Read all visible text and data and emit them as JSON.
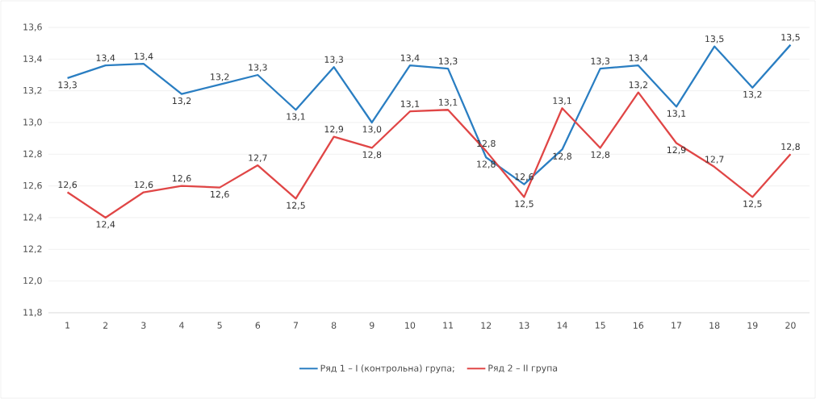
{
  "chart_data": {
    "type": "line",
    "categories": [
      "1",
      "2",
      "3",
      "4",
      "5",
      "6",
      "7",
      "8",
      "9",
      "10",
      "11",
      "12",
      "13",
      "14",
      "15",
      "16",
      "17",
      "18",
      "19",
      "20"
    ],
    "series": [
      {
        "name": "Ряд 1 – I (контрольна) група;",
        "color": "#2a7ec2",
        "values": [
          13.28,
          13.36,
          13.37,
          13.18,
          13.24,
          13.3,
          13.08,
          13.35,
          13.0,
          13.36,
          13.34,
          12.78,
          12.61,
          12.83,
          13.34,
          13.36,
          13.1,
          13.48,
          13.22,
          13.49
        ],
        "value_labels": [
          "13,3",
          "13,4",
          "13,4",
          "13,2",
          "13,2",
          "13,3",
          "13,1",
          "13,3",
          "13,0",
          "13,4",
          "13,3",
          "12,8",
          "12,6",
          "12,8",
          "13,3",
          "13,4",
          "13,1",
          "13,5",
          "13,2",
          "13,5"
        ]
      },
      {
        "name": "Ряд 2 – II група",
        "color": "#e04646",
        "values": [
          12.56,
          12.4,
          12.56,
          12.6,
          12.59,
          12.73,
          12.52,
          12.91,
          12.84,
          13.07,
          13.08,
          12.82,
          12.53,
          13.09,
          12.84,
          13.19,
          12.87,
          12.72,
          12.53,
          12.8
        ],
        "value_labels": [
          "12,6",
          "12,4",
          "12,6",
          "12,6",
          "12,6",
          "12,7",
          "12,5",
          "12,9",
          "12,8",
          "13,1",
          "13,1",
          "12,8",
          "12,5",
          "13,1",
          "12,8",
          "13,2",
          "12,9",
          "12,7",
          "12,5",
          "12,8"
        ]
      }
    ],
    "ylim": [
      11.8,
      13.6
    ],
    "yticks": [
      {
        "value": 11.8,
        "label": "11,8"
      },
      {
        "value": 12.0,
        "label": "12,0"
      },
      {
        "value": 12.2,
        "label": "12,2"
      },
      {
        "value": 12.4,
        "label": "12,4"
      },
      {
        "value": 12.6,
        "label": "12,6"
      },
      {
        "value": 12.8,
        "label": "12,8"
      },
      {
        "value": 13.0,
        "label": "13,0"
      },
      {
        "value": 13.2,
        "label": "13,2"
      },
      {
        "value": 13.4,
        "label": "13,4"
      },
      {
        "value": 13.6,
        "label": "13,6"
      }
    ],
    "grid": "y",
    "legend": "bottom",
    "marker": "none",
    "line_style": "solid"
  }
}
